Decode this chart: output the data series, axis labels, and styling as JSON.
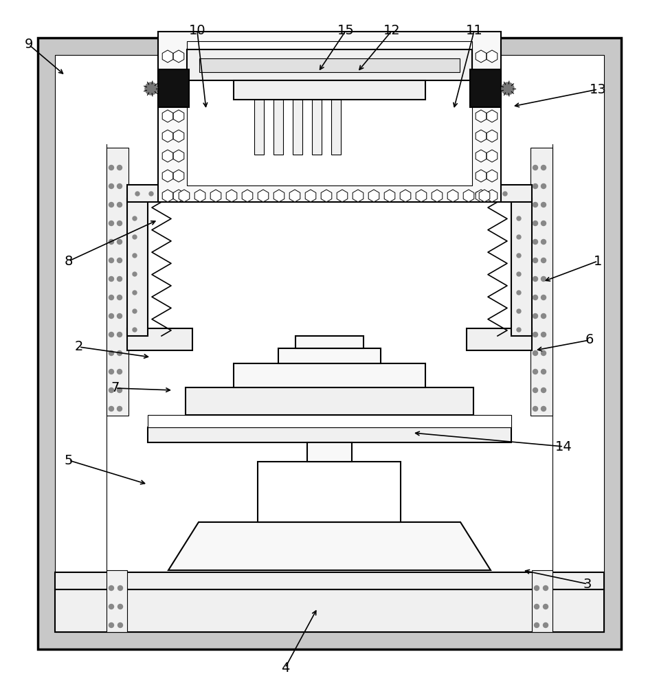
{
  "bg_color": "#ffffff",
  "lc": "#000000",
  "dark": "#111111",
  "gray1": "#e8e8e8",
  "gray2": "#f0f0f0",
  "dot_color": "#888888",
  "lw_thick": 2.5,
  "lw_main": 1.5,
  "lw_thin": 0.8,
  "label_fontsize": 14,
  "label_data": [
    [
      "9",
      42,
      935,
      95,
      890
    ],
    [
      "10",
      287,
      955,
      300,
      840
    ],
    [
      "11",
      690,
      955,
      660,
      840
    ],
    [
      "12",
      570,
      955,
      520,
      895
    ],
    [
      "13",
      870,
      870,
      745,
      845
    ],
    [
      "15",
      503,
      955,
      463,
      895
    ],
    [
      "1",
      870,
      620,
      790,
      590
    ],
    [
      "2",
      115,
      495,
      220,
      480
    ],
    [
      "3",
      855,
      150,
      760,
      170
    ],
    [
      "4",
      415,
      28,
      462,
      115
    ],
    [
      "5",
      100,
      330,
      215,
      295
    ],
    [
      "6",
      858,
      505,
      778,
      490
    ],
    [
      "7",
      168,
      435,
      252,
      432
    ],
    [
      "8",
      100,
      620,
      230,
      680
    ],
    [
      "14",
      820,
      350,
      600,
      370
    ]
  ]
}
